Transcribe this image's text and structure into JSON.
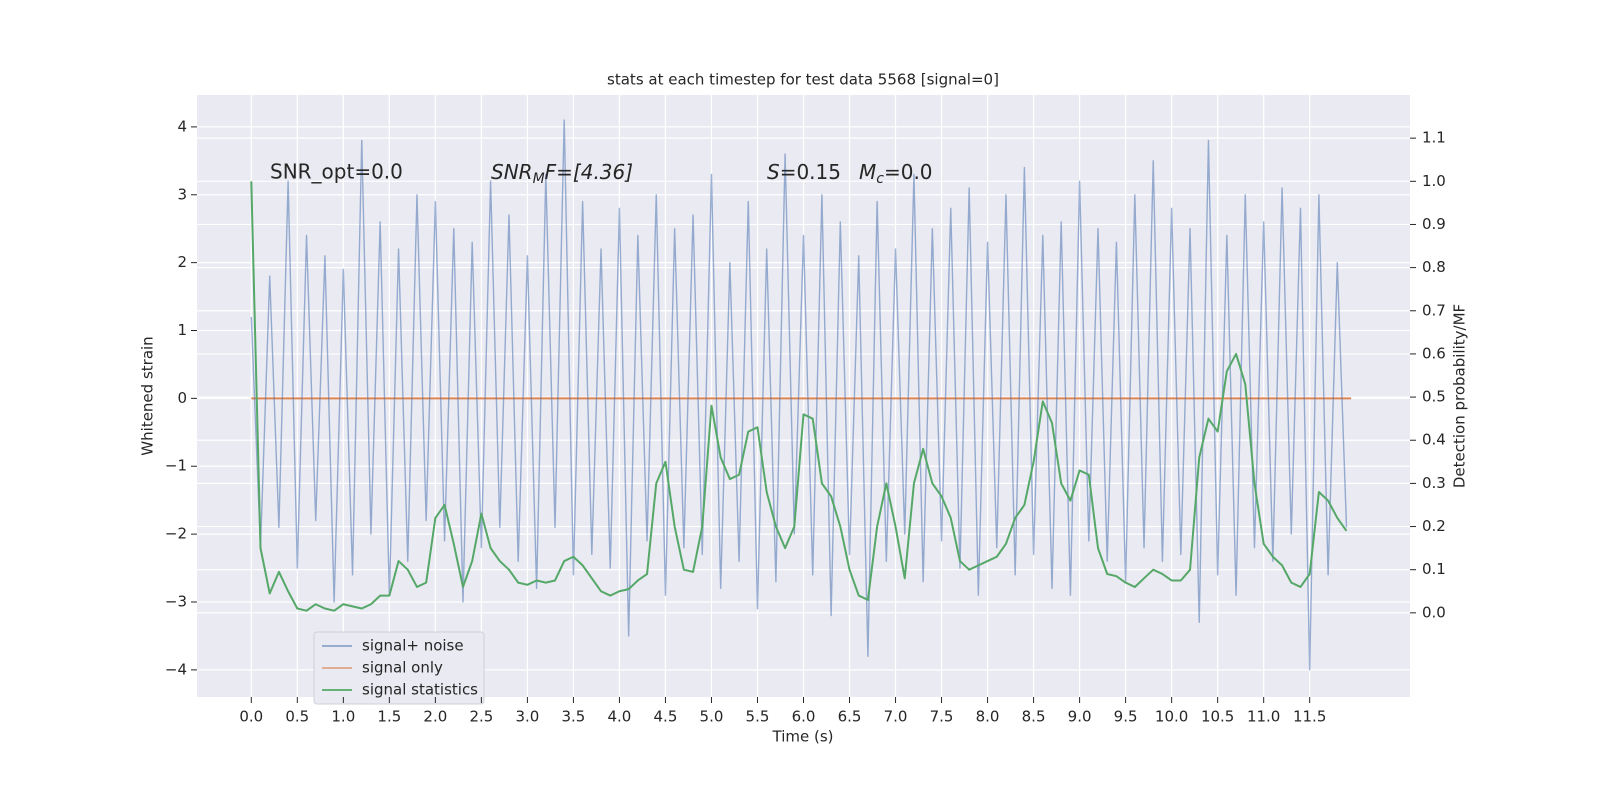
{
  "chart_data": {
    "type": "line",
    "title": "stats at each timestep for test data 5568 [signal=0]",
    "xlabel": "Time (s)",
    "ylabel": "Whitened strain",
    "y2label": "Detection probability/MF",
    "annotations": [
      [
        "SNR_opt=0.0"
      ],
      [
        "SNR",
        "M",
        "F=[4.36]"
      ],
      [
        "S",
        "=0.15"
      ],
      [
        "M",
        "c",
        "=0.0"
      ]
    ],
    "xlim": [
      -0.59,
      12.59
    ],
    "ylim": [
      -4.4,
      4.47
    ],
    "y2lim": [
      -0.195,
      1.2
    ],
    "xticks": [
      {
        "value": 0,
        "label": "0.0"
      },
      0.5,
      {
        "value": 1,
        "label": "1.0"
      },
      1.5,
      {
        "value": 2,
        "label": "2.0"
      },
      2.5,
      {
        "value": 3,
        "label": "3.0"
      },
      3.5,
      {
        "value": 4,
        "label": "4.0"
      },
      4.5,
      {
        "value": 5,
        "label": "5.0"
      },
      5.5,
      {
        "value": 6,
        "label": "6.0"
      },
      6.5,
      {
        "value": 7,
        "label": "7.0"
      },
      7.5,
      {
        "value": 8,
        "label": "8.0"
      },
      8.5,
      {
        "value": 9,
        "label": "9.0"
      },
      9.5,
      {
        "value": 10,
        "label": "10.0"
      },
      10.5,
      {
        "value": 11,
        "label": "11.0"
      },
      11.5
    ],
    "yticks": [
      {
        "value": -4,
        "label": "−4"
      },
      {
        "value": -3,
        "label": "−3"
      },
      {
        "value": -2,
        "label": "−2"
      },
      {
        "value": -1,
        "label": "−1"
      },
      0,
      1,
      2,
      3,
      4
    ],
    "y2ticks": [
      {
        "value": 0,
        "label": "0.0"
      },
      0.1,
      0.2,
      0.3,
      0.4,
      0.5,
      0.6,
      0.7,
      0.8,
      0.9,
      {
        "value": 1,
        "label": "1.0"
      },
      1.1
    ],
    "grid": true,
    "legend": "lower left",
    "x": [
      0,
      0.1,
      0.2,
      0.3,
      0.4,
      0.5,
      0.6,
      0.7,
      0.8,
      0.9,
      1,
      1.1,
      1.2,
      1.3,
      1.4,
      1.5,
      1.6,
      1.7,
      1.8,
      1.9,
      2,
      2.1,
      2.2,
      2.3,
      2.4,
      2.5,
      2.6,
      2.7,
      2.8,
      2.9,
      3,
      3.1,
      3.2,
      3.3,
      3.4,
      3.5,
      3.6,
      3.7,
      3.8,
      3.9,
      4,
      4.1,
      4.2,
      4.3,
      4.4,
      4.5,
      4.6,
      4.7,
      4.8,
      4.9,
      5,
      5.1,
      5.2,
      5.3,
      5.4,
      5.5,
      5.6,
      5.7,
      5.8,
      5.9,
      6,
      6.1,
      6.2,
      6.3,
      6.4,
      6.5,
      6.6,
      6.7,
      6.8,
      6.9,
      7,
      7.1,
      7.2,
      7.3,
      7.4,
      7.5,
      7.6,
      7.7,
      7.8,
      7.9,
      8,
      8.1,
      8.2,
      8.3,
      8.4,
      8.5,
      8.6,
      8.7,
      8.8,
      8.9,
      9,
      9.1,
      9.2,
      9.3,
      9.4,
      9.5,
      9.6,
      9.7,
      9.8,
      9.9,
      10,
      10.1,
      10.2,
      10.3,
      10.4,
      10.5,
      10.6,
      10.7,
      10.8,
      10.9,
      11,
      11.1,
      11.2,
      11.3,
      11.4,
      11.5,
      11.6,
      11.7,
      11.8,
      11.9
    ],
    "series": [
      {
        "name": "signal+ noise",
        "color": "#4c72b0",
        "values": [
          1.2,
          -2.2,
          1.8,
          -1.9,
          3.2,
          -2.5,
          2.4,
          -1.8,
          2.1,
          -3.0,
          1.9,
          -2.6,
          3.8,
          -2.0,
          2.6,
          -2.9,
          2.2,
          -2.4,
          3.0,
          -1.8,
          2.9,
          -2.1,
          2.5,
          -3.0,
          2.3,
          -2.2,
          3.2,
          -1.9,
          2.7,
          -2.4,
          2.1,
          -2.8,
          3.3,
          -1.9,
          4.1,
          -2.6,
          2.9,
          -2.3,
          2.2,
          -2.5,
          2.8,
          -3.5,
          2.4,
          -2.1,
          3.0,
          -2.9,
          2.5,
          -2.2,
          2.7,
          -2.3,
          3.3,
          -2.8,
          2.0,
          -2.4,
          2.9,
          -3.1,
          2.2,
          -2.7,
          3.6,
          -2.0,
          2.4,
          -2.6,
          3.0,
          -3.2,
          2.6,
          -2.3,
          2.1,
          -3.8,
          2.9,
          -2.4,
          2.2,
          -2.0,
          3.3,
          -2.7,
          2.5,
          -2.1,
          2.8,
          -2.5,
          3.1,
          -2.9,
          2.3,
          -2.2,
          3.0,
          -2.6,
          3.4,
          -2.3,
          2.4,
          -2.8,
          2.6,
          -2.9,
          3.2,
          -2.1,
          2.5,
          -2.4,
          2.3,
          -2.7,
          3.0,
          -2.2,
          3.5,
          -2.4,
          2.8,
          -2.3,
          2.5,
          -3.3,
          3.8,
          -2.6,
          2.4,
          -2.9,
          3.0,
          -2.2,
          2.6,
          -2.4,
          3.1,
          -2.0,
          2.8,
          -4.0,
          3.0,
          -2.6,
          2.0,
          -1.9
        ]
      },
      {
        "name": "signal only",
        "color": "#dd8452",
        "x": [
          0,
          11.95
        ],
        "values": [
          0,
          0
        ]
      },
      {
        "name": "signal statistics",
        "color": "#55a868",
        "axis": "y2",
        "values": [
          1.0,
          0.15,
          0.045,
          0.095,
          0.05,
          0.01,
          0.005,
          0.02,
          0.01,
          0.005,
          0.02,
          0.015,
          0.01,
          0.02,
          0.04,
          0.04,
          0.12,
          0.1,
          0.06,
          0.07,
          0.22,
          0.25,
          0.16,
          0.06,
          0.12,
          0.23,
          0.15,
          0.12,
          0.1,
          0.07,
          0.065,
          0.075,
          0.07,
          0.075,
          0.12,
          0.13,
          0.11,
          0.08,
          0.05,
          0.04,
          0.05,
          0.055,
          0.075,
          0.09,
          0.3,
          0.35,
          0.2,
          0.1,
          0.095,
          0.2,
          0.48,
          0.36,
          0.31,
          0.32,
          0.42,
          0.43,
          0.28,
          0.2,
          0.15,
          0.2,
          0.46,
          0.45,
          0.3,
          0.27,
          0.2,
          0.1,
          0.04,
          0.03,
          0.2,
          0.3,
          0.2,
          0.08,
          0.3,
          0.38,
          0.3,
          0.27,
          0.22,
          0.12,
          0.1,
          0.11,
          0.12,
          0.13,
          0.16,
          0.22,
          0.25,
          0.35,
          0.49,
          0.44,
          0.3,
          0.26,
          0.33,
          0.32,
          0.15,
          0.09,
          0.085,
          0.07,
          0.06,
          0.08,
          0.1,
          0.09,
          0.075,
          0.075,
          0.1,
          0.36,
          0.45,
          0.42,
          0.56,
          0.6,
          0.53,
          0.3,
          0.16,
          0.13,
          0.11,
          0.07,
          0.06,
          0.09,
          0.28,
          0.26,
          0.22,
          0.19
        ]
      }
    ]
  }
}
